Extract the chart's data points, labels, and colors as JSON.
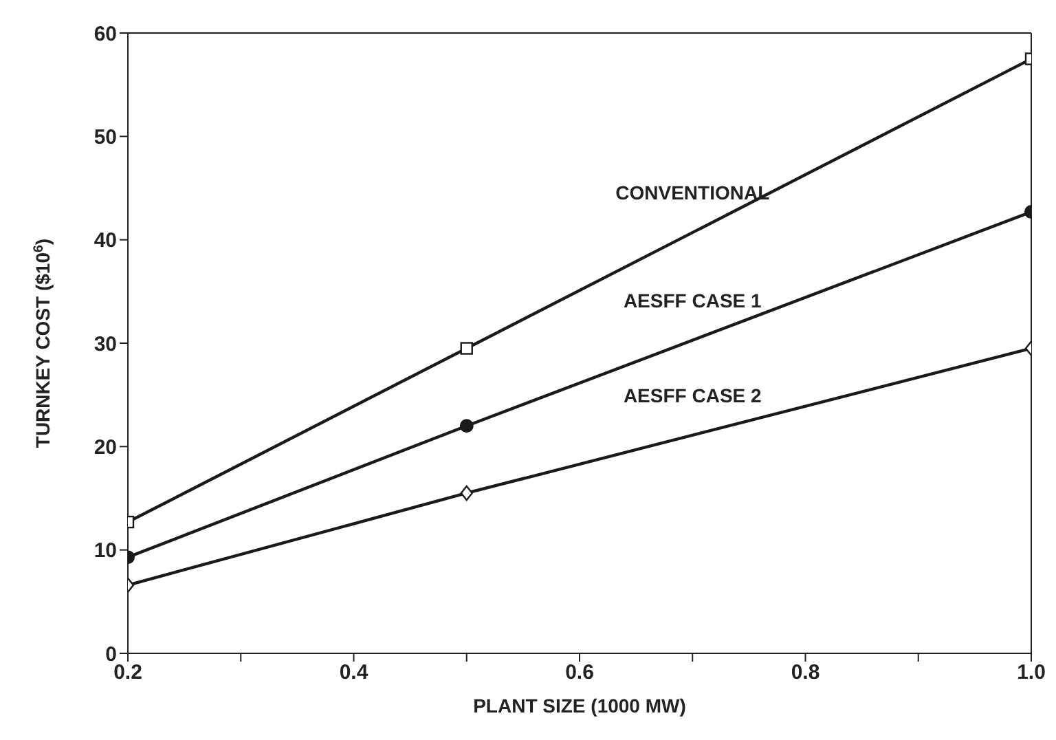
{
  "chart_data": {
    "type": "line",
    "xlabel": "PLANT SIZE (1000 MW)",
    "ylabel": "TURNKEY COST ($10$^{6}$)",
    "x": [
      0.2,
      0.5,
      1.0
    ],
    "series": [
      {
        "name": "CONVENTIONAL",
        "color": "#1a1a1a",
        "marker": "square",
        "values": [
          12.7,
          29.5,
          57.5
        ]
      },
      {
        "name": "AESFF CASE 1",
        "color": "#1a1a1a",
        "marker": "circle",
        "values": [
          9.3,
          22,
          42.7
        ]
      },
      {
        "name": "AESFF CASE 2",
        "color": "#1a1a1a",
        "marker": "diamond",
        "values": [
          6.6,
          15.5,
          29.5
        ]
      }
    ],
    "xlim": [
      0.2,
      1.0
    ],
    "xticks": [
      0.2,
      {
        "value": 0.3,
        "label": null
      },
      0.4,
      {
        "value": 0.5,
        "label": null
      },
      0.6,
      {
        "value": 0.7,
        "label": null
      },
      0.8,
      {
        "value": 0.9,
        "label": null
      },
      {
        "value": 1.0,
        "label": "1.0"
      }
    ],
    "ylim": [
      0,
      60
    ],
    "yticks": [
      0,
      10,
      20,
      30,
      40,
      50,
      60
    ],
    "line_style": "solid"
  }
}
